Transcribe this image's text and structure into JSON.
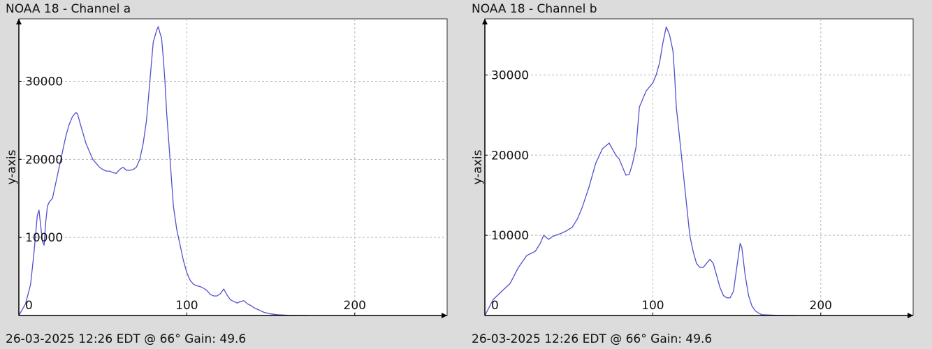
{
  "chart_data": [
    {
      "type": "line",
      "title": "NOAA 18 - Channel a",
      "footer": "26-03-2025 12:26 EDT @ 66° Gain: 49.6",
      "xlabel": "",
      "ylabel": "y-axis",
      "xlim": [
        0,
        255
      ],
      "ylim": [
        0,
        38000
      ],
      "xticks": [
        0,
        100,
        200
      ],
      "yticks": [
        10000,
        20000,
        30000
      ],
      "xtick_labels": [
        "0",
        "100",
        "200"
      ],
      "ytick_labels": [
        "10000",
        "20000",
        "30000"
      ],
      "grid": true,
      "line_color": "#5050d0",
      "series": [
        {
          "x": [
            0,
            4,
            7,
            9,
            11,
            12,
            14,
            15,
            16,
            17,
            18,
            20,
            22,
            24,
            26,
            28,
            30,
            32,
            34,
            35,
            36,
            38,
            40,
            42,
            44,
            46,
            48,
            50,
            52,
            54,
            56,
            58,
            60,
            62,
            64,
            66,
            68,
            70,
            72,
            74,
            76,
            78,
            80,
            82,
            83,
            84,
            85,
            86,
            87,
            88,
            90,
            92,
            94,
            96,
            98,
            100,
            102,
            104,
            106,
            108,
            110,
            112,
            114,
            116,
            118,
            120,
            122,
            124,
            126,
            128,
            130,
            132,
            134,
            136,
            138,
            140,
            142,
            144,
            146,
            148,
            150,
            152,
            154,
            156,
            158,
            160,
            162,
            164,
            166,
            168,
            170,
            172
          ],
          "y": [
            0,
            1500,
            4000,
            8000,
            12800,
            13500,
            9500,
            9000,
            12000,
            14000,
            14500,
            15000,
            17000,
            19000,
            21000,
            23000,
            24500,
            25500,
            26000,
            25800,
            25000,
            23500,
            22000,
            21000,
            20000,
            19500,
            19000,
            18700,
            18500,
            18500,
            18300,
            18200,
            18700,
            19000,
            18600,
            18600,
            18700,
            19000,
            20000,
            22000,
            25000,
            30000,
            35000,
            36500,
            37000,
            36200,
            35500,
            33000,
            30000,
            26000,
            20000,
            14000,
            11000,
            9000,
            7000,
            5500,
            4500,
            4000,
            3800,
            3700,
            3500,
            3200,
            2700,
            2500,
            2500,
            2800,
            3400,
            2600,
            2000,
            1800,
            1600,
            1800,
            1900,
            1500,
            1300,
            1000,
            800,
            600,
            400,
            300,
            200,
            150,
            100,
            80,
            50,
            30,
            20,
            10,
            5,
            0,
            0,
            0
          ]
        }
      ]
    },
    {
      "type": "line",
      "title": "NOAA 18 - Channel b",
      "footer": "26-03-2025 12:26 EDT @ 66° Gain: 49.6",
      "xlabel": "",
      "ylabel": "y-axis",
      "xlim": [
        0,
        255
      ],
      "ylim": [
        0,
        37000
      ],
      "xticks": [
        0,
        100,
        200
      ],
      "yticks": [
        10000,
        20000,
        30000
      ],
      "xtick_labels": [
        "0",
        "100",
        "200"
      ],
      "ytick_labels": [
        "10000",
        "20000",
        "30000"
      ],
      "grid": true,
      "line_color": "#5050d0",
      "series": [
        {
          "x": [
            0,
            5,
            10,
            15,
            20,
            25,
            30,
            33,
            35,
            38,
            40,
            42,
            45,
            48,
            52,
            55,
            58,
            62,
            66,
            70,
            74,
            78,
            80,
            82,
            84,
            86,
            88,
            90,
            92,
            94,
            96,
            98,
            100,
            102,
            104,
            106,
            108,
            110,
            112,
            113,
            114,
            116,
            118,
            120,
            122,
            124,
            126,
            128,
            130,
            132,
            134,
            136,
            138,
            140,
            142,
            144,
            146,
            148,
            150,
            152,
            153,
            155,
            157,
            159,
            161,
            163,
            165,
            170,
            175,
            180,
            185
          ],
          "y": [
            0,
            2000,
            3000,
            4000,
            6000,
            7500,
            8000,
            9000,
            10000,
            9500,
            9800,
            10000,
            10200,
            10500,
            11000,
            12000,
            13500,
            16000,
            19000,
            20800,
            21500,
            20000,
            19500,
            18500,
            17500,
            17600,
            19000,
            21000,
            26000,
            27000,
            28000,
            28500,
            29000,
            30000,
            31500,
            34000,
            36000,
            35000,
            33000,
            30000,
            26000,
            22000,
            18000,
            14000,
            10000,
            8000,
            6500,
            6000,
            6000,
            6500,
            7000,
            6500,
            5000,
            3500,
            2500,
            2200,
            2200,
            3000,
            6000,
            9000,
            8500,
            5000,
            2500,
            1200,
            600,
            300,
            100,
            50,
            20,
            0,
            0
          ]
        }
      ]
    }
  ]
}
